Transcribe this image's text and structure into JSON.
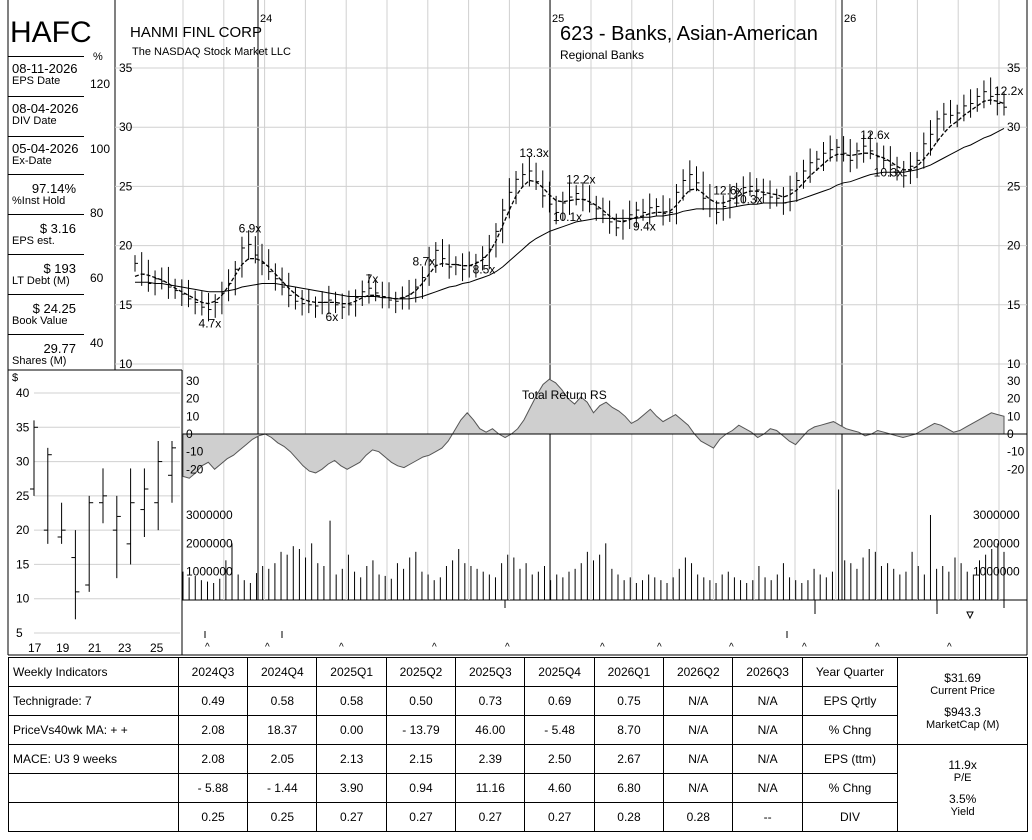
{
  "header": {
    "ticker": "HAFC",
    "company": "HANMI FINL CORP",
    "exchange": "The NASDAQ Stock Market LLC",
    "group": "623 - Banks, Asian-American",
    "subgroup": "Regional Banks"
  },
  "info_panel": [
    {
      "value": "08-11-2026",
      "key": "EPS Date"
    },
    {
      "value": "08-04-2026",
      "key": "DIV Date"
    },
    {
      "value": "05-04-2026",
      "key": "Ex-Date"
    },
    {
      "value": "97.14%",
      "key": "%Inst Hold"
    },
    {
      "value": "$ 3.16",
      "key": "EPS est."
    },
    {
      "value": "$ 193",
      "key": "LT Debt (M)"
    },
    {
      "value": "$ 24.25",
      "key": "Book Value"
    },
    {
      "value": "29.77",
      "key": "Shares (M)"
    }
  ],
  "pct_axis": {
    "symbol": "%",
    "ticks": [
      "120",
      "100",
      "80",
      "60",
      "40"
    ]
  },
  "chart_data": [
    {
      "type": "line",
      "name": "price-weekly",
      "x_labels": [
        "24",
        "25",
        "26"
      ],
      "y_ticks": [
        10,
        15,
        20,
        25,
        30,
        35
      ],
      "ylim": [
        10,
        35
      ],
      "pe_annotations": [
        "6.9x",
        "4.7x",
        "7x",
        "6x",
        "8.7x",
        "8.5x",
        "13.3x",
        "12.2x",
        "10.1x",
        "9.4x",
        "12.6x",
        "10.3x",
        "12.6x",
        "10.3x",
        "12.2x"
      ],
      "close": [
        18.5,
        17.6,
        16.8,
        17.2,
        17.0,
        16.5,
        16.2,
        15.9,
        15.5,
        15.2,
        14.8,
        14.6,
        15.2,
        16.0,
        16.8,
        18.0,
        19.8,
        20.1,
        19.2,
        18.5,
        17.8,
        17.2,
        16.5,
        15.8,
        15.3,
        15.1,
        15.0,
        14.9,
        15.2,
        15.4,
        15.0,
        14.8,
        15.0,
        15.6,
        16.1,
        16.4,
        16.0,
        15.7,
        15.4,
        15.3,
        15.6,
        15.9,
        16.5,
        17.3,
        18.7,
        19.6,
        18.9,
        18.2,
        18.4,
        18.0,
        18.3,
        18.6,
        19.0,
        19.7,
        21.2,
        23.0,
        24.5,
        25.6,
        26.0,
        26.3,
        25.4,
        24.2,
        23.5,
        22.8,
        23.6,
        24.1,
        24.4,
        23.9,
        23.5,
        23.1,
        22.6,
        22.0,
        21.5,
        22.1,
        22.6,
        23.0,
        22.8,
        23.2,
        23.3,
        22.7,
        22.8,
        24.5,
        25.5,
        26.0,
        25.3,
        24.0,
        23.1,
        22.8,
        23.3,
        24.0,
        24.6,
        24.9,
        25.0,
        24.7,
        24.3,
        24.1,
        24.0,
        23.6,
        24.7,
        25.5,
        26.3,
        27.0,
        27.3,
        27.8,
        28.1,
        28.3,
        27.8,
        27.2,
        28.0,
        28.4,
        28.0,
        27.5,
        27.2,
        26.8,
        26.2,
        25.9,
        26.7,
        27.2,
        28.6,
        29.4,
        30.7,
        31.1,
        31.0,
        31.2,
        31.8,
        32.0,
        32.6,
        33.0,
        32.6,
        32.0,
        31.69
      ],
      "ma_short": [
        17.4,
        17.6,
        17.5,
        17.3,
        17.1,
        16.8,
        16.4,
        16.1,
        15.8,
        15.5,
        15.2,
        15.1,
        15.3,
        15.8,
        16.6,
        17.5,
        18.4,
        18.9,
        18.9,
        18.7,
        18.2,
        17.6,
        17.0,
        16.4,
        15.9,
        15.5,
        15.3,
        15.2,
        15.2,
        15.2,
        15.2,
        15.1,
        15.1,
        15.3,
        15.6,
        15.8,
        15.8,
        15.7,
        15.6,
        15.5,
        15.6,
        15.8,
        16.2,
        16.8,
        17.6,
        18.3,
        18.5,
        18.4,
        18.4,
        18.3,
        18.3,
        18.5,
        18.8,
        19.4,
        20.4,
        21.7,
        23.0,
        24.2,
        25.0,
        25.5,
        25.4,
        24.9,
        24.3,
        23.8,
        23.7,
        23.8,
        23.9,
        23.9,
        23.7,
        23.4,
        23.0,
        22.5,
        22.1,
        22.0,
        22.2,
        22.4,
        22.5,
        22.7,
        22.8,
        22.8,
        22.9,
        23.4,
        24.1,
        24.7,
        24.8,
        24.4,
        23.9,
        23.6,
        23.6,
        23.8,
        24.1,
        24.4,
        24.6,
        24.6,
        24.5,
        24.4,
        24.3,
        24.1,
        24.3,
        24.7,
        25.3,
        25.9,
        26.4,
        26.9,
        27.4,
        27.7,
        27.7,
        27.6,
        27.7,
        27.8,
        27.8,
        27.6,
        27.4,
        27.1,
        26.7,
        26.4,
        26.4,
        26.7,
        27.3,
        28.0,
        28.8,
        29.5,
        30.1,
        30.5,
        31.0,
        31.4,
        31.8,
        32.2,
        32.3,
        32.2,
        32.0
      ],
      "ma_long": [
        16.9,
        16.9,
        16.9,
        16.8,
        16.8,
        16.7,
        16.6,
        16.5,
        16.4,
        16.3,
        16.2,
        16.1,
        16.1,
        16.1,
        16.2,
        16.3,
        16.5,
        16.6,
        16.7,
        16.8,
        16.8,
        16.8,
        16.7,
        16.6,
        16.5,
        16.4,
        16.3,
        16.2,
        16.1,
        16.0,
        15.9,
        15.8,
        15.7,
        15.7,
        15.7,
        15.7,
        15.7,
        15.6,
        15.6,
        15.5,
        15.5,
        15.5,
        15.6,
        15.7,
        15.9,
        16.1,
        16.3,
        16.5,
        16.6,
        16.8,
        16.9,
        17.1,
        17.3,
        17.5,
        17.8,
        18.2,
        18.7,
        19.2,
        19.7,
        20.2,
        20.6,
        20.9,
        21.2,
        21.4,
        21.6,
        21.8,
        22.0,
        22.1,
        22.2,
        22.3,
        22.3,
        22.3,
        22.3,
        22.3,
        22.3,
        22.3,
        22.4,
        22.4,
        22.5,
        22.5,
        22.6,
        22.7,
        22.9,
        23.0,
        23.1,
        23.1,
        23.1,
        23.1,
        23.1,
        23.2,
        23.3,
        23.4,
        23.5,
        23.5,
        23.6,
        23.6,
        23.6,
        23.6,
        23.7,
        23.8,
        24.0,
        24.2,
        24.4,
        24.6,
        24.8,
        25.1,
        25.3,
        25.4,
        25.6,
        25.8,
        26.0,
        26.1,
        26.2,
        26.2,
        26.2,
        26.2,
        26.3,
        26.4,
        26.6,
        26.8,
        27.1,
        27.4,
        27.7,
        28.0,
        28.3,
        28.5,
        28.8,
        29.1,
        29.3,
        29.6,
        29.9
      ]
    },
    {
      "type": "area",
      "name": "total-return-rs",
      "title": "Total Return RS",
      "y_ticks": [
        30,
        20,
        10,
        0,
        -10,
        -20
      ],
      "ylim": [
        -30,
        30
      ],
      "values": [
        -24,
        -25,
        -22,
        -18,
        -16,
        -20,
        -17,
        -14,
        -12,
        -9,
        -6,
        -3,
        -1,
        0,
        -2,
        -5,
        -7,
        -10,
        -14,
        -18,
        -21,
        -22,
        -20,
        -17,
        -15,
        -18,
        -20,
        -18,
        -16,
        -12,
        -9,
        -10,
        -13,
        -16,
        -18,
        -19,
        -17,
        -15,
        -13,
        -12,
        -10,
        -8,
        -4,
        2,
        8,
        12,
        8,
        3,
        1,
        3,
        0,
        -2,
        0,
        3,
        8,
        15,
        22,
        28,
        31,
        29,
        25,
        20,
        17,
        21,
        18,
        12,
        16,
        18,
        15,
        13,
        10,
        6,
        8,
        11,
        14,
        10,
        7,
        9,
        11,
        8,
        5,
        0,
        -4,
        -6,
        -8,
        -3,
        0,
        2,
        5,
        3,
        1,
        -2,
        0,
        3,
        2,
        -1,
        -4,
        -6,
        -2,
        2,
        4,
        5,
        6,
        7,
        5,
        3,
        2,
        1,
        -1,
        0,
        2,
        1,
        0,
        -1,
        -2,
        -1,
        0,
        2,
        4,
        6,
        5,
        3,
        1,
        2,
        4,
        6,
        8,
        10,
        12,
        11,
        10
      ],
      "baseline": 0
    },
    {
      "type": "bar",
      "name": "volume",
      "y_ticks": [
        3000000,
        2000000,
        1000000
      ],
      "y_tick_labels": [
        "3000000",
        "2000000",
        "1000000"
      ],
      "ylim": [
        0,
        3500000
      ],
      "values": [
        1000000,
        800000,
        850000,
        700000,
        650000,
        600000,
        750000,
        1400000,
        2000000,
        900000,
        700000,
        600000,
        950000,
        1200000,
        1100000,
        1300000,
        1700000,
        1600000,
        1900000,
        1800000,
        1500000,
        2000000,
        1300000,
        1200000,
        2800000,
        900000,
        1100000,
        1600000,
        1000000,
        800000,
        1200000,
        1400000,
        900000,
        850000,
        750000,
        1300000,
        1100000,
        1500000,
        1700000,
        1000000,
        900000,
        700000,
        800000,
        1200000,
        1400000,
        1800000,
        1300000,
        1200000,
        1100000,
        1000000,
        900000,
        800000,
        1300000,
        1600000,
        1500000,
        1100000,
        1300000,
        900000,
        1000000,
        1200000,
        700000,
        900000,
        800000,
        1000000,
        1100000,
        1300000,
        1700000,
        1400000,
        1600000,
        2000000,
        1100000,
        900000,
        700000,
        800000,
        600000,
        700000,
        900000,
        800000,
        700000,
        600000,
        800000,
        1100000,
        1500000,
        1300000,
        900000,
        800000,
        700000,
        600000,
        900000,
        1000000,
        800000,
        700000,
        600000,
        700000,
        1200000,
        800000,
        700000,
        900000,
        1300000,
        800000,
        700000,
        600000,
        700000,
        1100000,
        900000,
        800000,
        1000000,
        3900000,
        1400000,
        1300000,
        1100000,
        1500000,
        1800000,
        1700000,
        1200000,
        1300000,
        1100000,
        900000,
        1000000,
        1700000,
        1200000,
        900000,
        3000000,
        1100000,
        1200000,
        1000000,
        1500000,
        1300000,
        1000000,
        900000,
        1400000,
        1600000,
        1800000,
        2000000,
        1700000
      ],
      "neg_marks": [
        0,
        0,
        0,
        0,
        0,
        0,
        0,
        0,
        0,
        0,
        0,
        0,
        0,
        0,
        0,
        0,
        0,
        0,
        0,
        0,
        0,
        0,
        0,
        0,
        0,
        0,
        0,
        0,
        0,
        0,
        0,
        0,
        0,
        0,
        0,
        0,
        0,
        0,
        0,
        0,
        0,
        0,
        0,
        0,
        0,
        0,
        0,
        0,
        0,
        0,
        0,
        0,
        0,
        0,
        0,
        0,
        0,
        0,
        0,
        0,
        0,
        0,
        0,
        0,
        0,
        0,
        0,
        0,
        0,
        0,
        0,
        0,
        0,
        0,
        0,
        0,
        0,
        0,
        0,
        0,
        0,
        0,
        0,
        0,
        0,
        0,
        0,
        0,
        0,
        0,
        0,
        0,
        0,
        0,
        0,
        0,
        0,
        0,
        0,
        0,
        0,
        0,
        0,
        0,
        0,
        0,
        0,
        0,
        0,
        0,
        0,
        0,
        0,
        0,
        0,
        0,
        0,
        0,
        0,
        0,
        0,
        0,
        0,
        0,
        0,
        0,
        0,
        0,
        0,
        0,
        0,
        0
      ]
    },
    {
      "type": "bar",
      "name": "annual-range",
      "y_symbol": "$",
      "y_ticks": [
        40,
        35,
        30,
        25,
        20,
        15,
        10,
        5
      ],
      "ylim": [
        4,
        42
      ],
      "x_labels": [
        "17",
        "19",
        "21",
        "23",
        "25"
      ],
      "years": [
        2016,
        2017,
        2018,
        2019,
        2020,
        2021,
        2022,
        2023,
        2024,
        2025,
        2026
      ],
      "high": [
        36,
        32,
        24,
        20,
        25,
        29,
        25,
        29,
        29,
        33,
        33
      ],
      "low": [
        25,
        18,
        18,
        7,
        11,
        21,
        13,
        15,
        19,
        20,
        24
      ],
      "close": [
        35,
        31,
        20,
        11,
        24,
        25,
        22,
        24,
        26,
        30,
        32
      ],
      "open": [
        26,
        20,
        19,
        16,
        12,
        24,
        20,
        18,
        23,
        24,
        28
      ]
    }
  ],
  "indicators": {
    "header_left": "Weekly Indicators",
    "quarters": [
      "2024Q3",
      "2024Q4",
      "2025Q1",
      "2025Q2",
      "2025Q3",
      "2025Q4",
      "2026Q1",
      "2026Q2",
      "2026Q3"
    ],
    "year_quarter": "Year Quarter",
    "rows": [
      {
        "left": "Technigrade: 7",
        "values": [
          "0.49",
          "0.58",
          "0.58",
          "0.50",
          "0.73",
          "0.69",
          "0.75",
          "N/A",
          "N/A"
        ],
        "label": "EPS Qrtly"
      },
      {
        "left": "PriceVs40wk MA:  + +",
        "values": [
          "2.08",
          "18.37",
          "0.00",
          "- 13.79",
          "46.00",
          "- 5.48",
          "8.70",
          "N/A",
          "N/A"
        ],
        "label": "% Chng"
      },
      {
        "left": "MACE: U3  9 weeks",
        "values": [
          "2.08",
          "2.05",
          "2.13",
          "2.15",
          "2.39",
          "2.50",
          "2.67",
          "N/A",
          "N/A"
        ],
        "label": "EPS (ttm)"
      },
      {
        "left": "",
        "values": [
          "- 5.88",
          "- 1.44",
          "3.90",
          "0.94",
          "11.16",
          "4.60",
          "6.80",
          "N/A",
          "N/A"
        ],
        "label": "% Chng"
      },
      {
        "left": "",
        "values": [
          "0.25",
          "0.25",
          "0.27",
          "0.27",
          "0.27",
          "0.27",
          "0.28",
          "0.28",
          "--"
        ],
        "label": "DIV"
      }
    ],
    "summary": {
      "price_value": "$31.69",
      "price_label": "Current Price",
      "mcap_value": "$943.3",
      "mcap_label": "MarketCap (M)",
      "pe_value": "11.9x",
      "pe_label": "P/E",
      "yield_value": "3.5%",
      "yield_label": "Yield"
    }
  },
  "caret": "^"
}
